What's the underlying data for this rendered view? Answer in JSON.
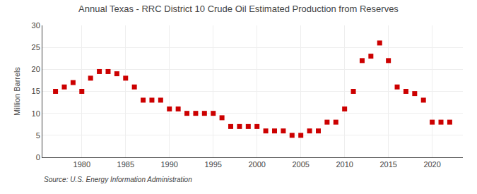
{
  "chart_data": {
    "type": "scatter",
    "title": "Annual Texas - RRC District 10 Crude Oil Estimated Production from Reserves",
    "ylabel": "Million Barrels",
    "annotations": [
      "Source: U.S. Energy Information Administration"
    ],
    "x": [
      1977,
      1978,
      1979,
      1980,
      1981,
      1982,
      1983,
      1984,
      1985,
      1986,
      1987,
      1988,
      1989,
      1990,
      1991,
      1992,
      1993,
      1994,
      1995,
      1996,
      1997,
      1998,
      1999,
      2000,
      2001,
      2002,
      2003,
      2004,
      2005,
      2006,
      2007,
      2008,
      2009,
      2010,
      2011,
      2012,
      2013,
      2014,
      2015,
      2016,
      2017,
      2018,
      2019,
      2020,
      2021,
      2022
    ],
    "values": [
      15.0,
      16.0,
      17.0,
      15.0,
      18.0,
      19.5,
      19.5,
      19.0,
      18.0,
      16.0,
      13.0,
      13.0,
      13.0,
      11.0,
      11.0,
      10.0,
      10.0,
      10.0,
      10.0,
      9.0,
      7.0,
      7.0,
      7.0,
      7.0,
      6.0,
      6.0,
      6.0,
      5.0,
      5.0,
      6.0,
      6.0,
      8.0,
      8.0,
      11.0,
      15.0,
      22.0,
      23.0,
      26.0,
      22.0,
      16.0,
      15.0,
      14.5,
      13.0,
      8.0,
      8.0,
      8.0
    ],
    "color": "#cc0000",
    "marker": "square",
    "xlim": [
      1975.5,
      2023.5
    ],
    "ylim": [
      0,
      30
    ],
    "xticks": [
      1980,
      1985,
      1990,
      1995,
      2000,
      2005,
      2010,
      2015,
      2020
    ],
    "yticks": [
      0,
      5,
      10,
      15,
      20,
      25,
      30
    ],
    "grid": true
  }
}
